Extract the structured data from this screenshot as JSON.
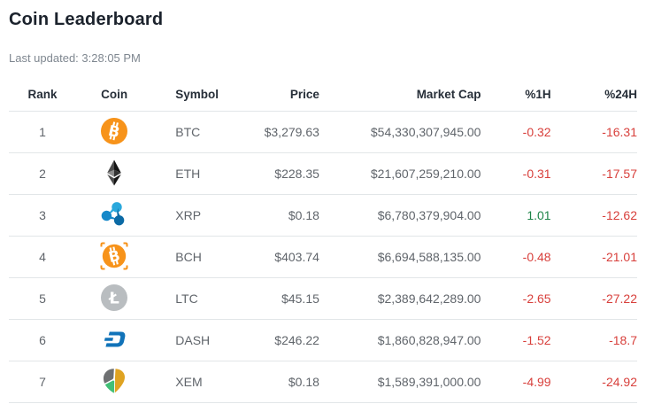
{
  "page": {
    "title": "Coin Leaderboard",
    "last_updated": "Last updated: 3:28:05 PM"
  },
  "table": {
    "columns": [
      "Rank",
      "Coin",
      "Symbol",
      "Price",
      "Market Cap",
      "%1H",
      "%24H"
    ],
    "rows": [
      {
        "rank": "1",
        "icon": "btc-icon",
        "symbol": "BTC",
        "price": "$3,279.63",
        "market_cap": "$54,330,307,945.00",
        "change_1h": "-0.32",
        "change_24h": "-16.31"
      },
      {
        "rank": "2",
        "icon": "eth-icon",
        "symbol": "ETH",
        "price": "$228.35",
        "market_cap": "$21,607,259,210.00",
        "change_1h": "-0.31",
        "change_24h": "-17.57"
      },
      {
        "rank": "3",
        "icon": "xrp-icon",
        "symbol": "XRP",
        "price": "$0.18",
        "market_cap": "$6,780,379,904.00",
        "change_1h": "1.01",
        "change_24h": "-12.62"
      },
      {
        "rank": "4",
        "icon": "bch-icon",
        "symbol": "BCH",
        "price": "$403.74",
        "market_cap": "$6,694,588,135.00",
        "change_1h": "-0.48",
        "change_24h": "-21.01"
      },
      {
        "rank": "5",
        "icon": "ltc-icon",
        "symbol": "LTC",
        "price": "$45.15",
        "market_cap": "$2,389,642,289.00",
        "change_1h": "-2.65",
        "change_24h": "-27.22"
      },
      {
        "rank": "6",
        "icon": "dash-icon",
        "symbol": "DASH",
        "price": "$246.22",
        "market_cap": "$1,860,828,947.00",
        "change_1h": "-1.52",
        "change_24h": "-18.7"
      },
      {
        "rank": "7",
        "icon": "xem-icon",
        "symbol": "XEM",
        "price": "$0.18",
        "market_cap": "$1,589,391,000.00",
        "change_1h": "-4.99",
        "change_24h": "-24.92"
      }
    ]
  },
  "colors": {
    "title_text": "#1b222c",
    "muted_text": "#7f8790",
    "header_text": "#262e38",
    "cell_text": "#60656b",
    "row_border": "#e2e6e8",
    "negative": "#d8403c",
    "positive": "#1e8448",
    "btc_orange": "#f7931a",
    "ltc_gray": "#b9bdc0",
    "dash_blue": "#1173b9",
    "xrp_blue": "#2aa8dc",
    "xem_gray": "#6e7072",
    "xem_gold": "#dfa322",
    "xem_green": "#41bf76"
  }
}
